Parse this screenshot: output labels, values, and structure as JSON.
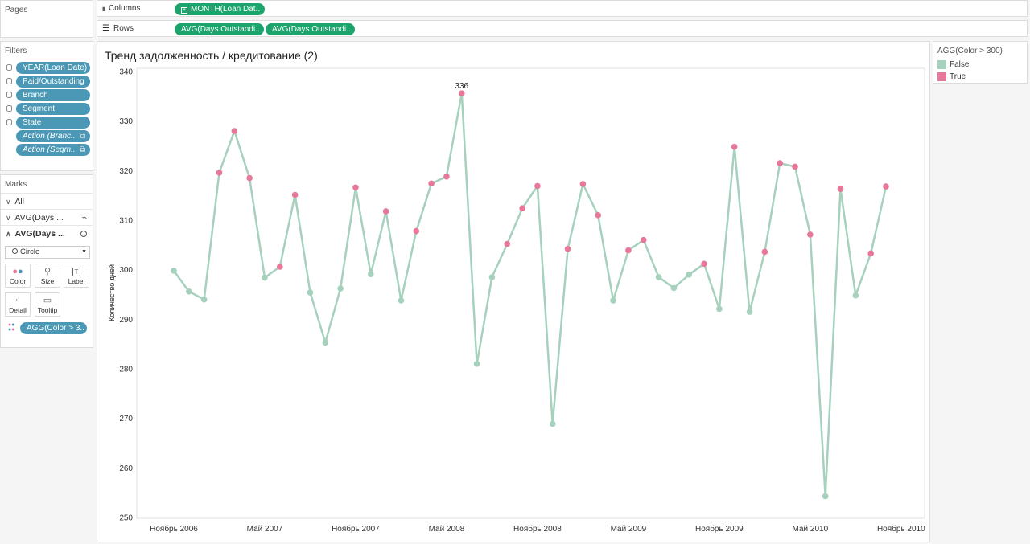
{
  "pages": {
    "title": "Pages"
  },
  "shelves": {
    "columns_label": "Columns",
    "columns_pill": "MONTH(Loan Dat..",
    "rows_label": "Rows",
    "rows_pills": [
      "AVG(Days Outstandi..",
      "AVG(Days Outstandi.."
    ]
  },
  "filters": {
    "title": "Filters",
    "items": [
      "YEAR(Loan Date)",
      "Paid/Outstanding",
      "Branch",
      "Segment",
      "State"
    ],
    "actions": [
      "Action (Branc..",
      "Action (Segm.."
    ]
  },
  "marks": {
    "title": "Marks",
    "all_label": "All",
    "layer1": "AVG(Days ...",
    "layer2": "AVG(Days ...",
    "mark_type": "Circle",
    "buttons": [
      "Color",
      "Size",
      "Label",
      "Detail",
      "Tooltip"
    ],
    "color_pill": "AGG(Color > 3.."
  },
  "legend": {
    "title": "AGG(Color > 300)",
    "items": [
      {
        "label": "False",
        "color": "#a6d1bd"
      },
      {
        "label": "True",
        "color": "#e8789a"
      }
    ]
  },
  "chart_data": {
    "type": "line",
    "title": "Тренд задолженность / кредитование (2)",
    "ylabel": "Количество дней",
    "ylim": [
      250,
      340
    ],
    "yticks": [
      250,
      260,
      270,
      280,
      290,
      300,
      310,
      320,
      330,
      340
    ],
    "xtick_labels": [
      "Ноябрь 2006",
      "Май 2007",
      "Ноябрь 2007",
      "Май 2008",
      "Ноябрь 2008",
      "Май 2009",
      "Ноябрь 2009",
      "Май 2010",
      "Ноябрь 2010"
    ],
    "xtick_index": [
      0,
      6,
      12,
      18,
      24,
      30,
      36,
      42,
      48
    ],
    "line_color": "#a6d1bd",
    "true_color": "#e8789a",
    "false_color": "#a6d1bd",
    "max_label": "336",
    "max_index": 19,
    "values": [
      299.8,
      295.6,
      294.0,
      319.6,
      328.0,
      318.5,
      298.4,
      300.6,
      315.1,
      295.4,
      285.3,
      296.2,
      316.6,
      299.1,
      311.8,
      293.8,
      307.8,
      317.4,
      318.8,
      335.6,
      281.0,
      298.5,
      305.2,
      312.4,
      316.9,
      268.9,
      304.2,
      317.3,
      311.0,
      293.8,
      303.9,
      306.0,
      298.5,
      296.3,
      299.0,
      301.2,
      292.1,
      324.8,
      291.5,
      303.6,
      321.5,
      320.8,
      307.1,
      254.3,
      316.3,
      294.8,
      303.3,
      316.8
    ]
  }
}
